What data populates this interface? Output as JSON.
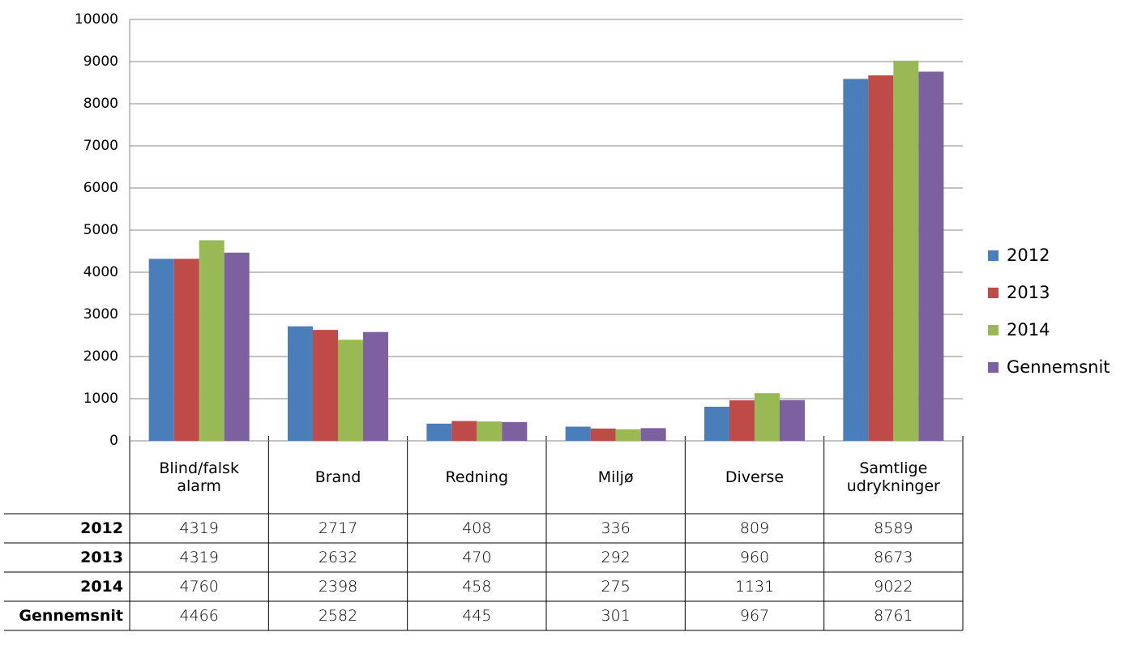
{
  "chart_data": {
    "type": "bar",
    "categories": [
      "Blind/falsk alarm",
      "Brand",
      "Redning",
      "Miljø",
      "Diverse",
      "Samtlige udrykninger"
    ],
    "series": [
      {
        "name": "2012",
        "color": "#4a7ebb",
        "values": [
          4319,
          2717,
          408,
          336,
          809,
          8589
        ]
      },
      {
        "name": "2013",
        "color": "#be4b48",
        "values": [
          4319,
          2632,
          470,
          292,
          960,
          8673
        ]
      },
      {
        "name": "2014",
        "color": "#98b954",
        "values": [
          4760,
          2398,
          458,
          275,
          1131,
          9022
        ]
      },
      {
        "name": "Gennemsnit",
        "color": "#7d60a0",
        "values": [
          4466,
          2582,
          445,
          301,
          967,
          8761
        ]
      }
    ],
    "ylim": [
      0,
      10000
    ],
    "yticks": [
      0,
      1000,
      2000,
      3000,
      4000,
      5000,
      6000,
      7000,
      8000,
      9000,
      10000
    ],
    "grid": true,
    "legend": "right"
  }
}
